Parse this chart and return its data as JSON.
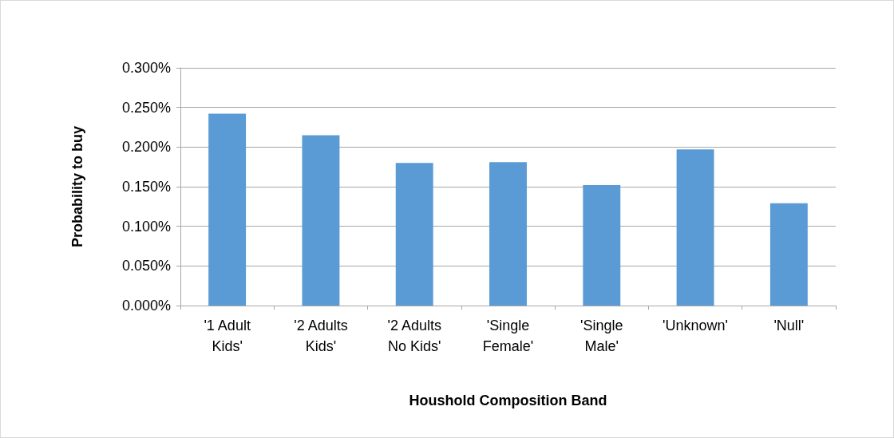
{
  "chart_data": {
    "type": "bar",
    "xlabel": "Houshold Composition Band",
    "ylabel": "Probability to buy",
    "categories": [
      "'1 Adult\nKids'",
      "'2 Adults\nKids'",
      "'2 Adults\nNo Kids'",
      "'Single\nFemale'",
      "'Single\nMale'",
      "'Unknown'",
      "'Null'"
    ],
    "values": [
      0.242,
      0.215,
      0.18,
      0.181,
      0.152,
      0.197,
      0.129
    ],
    "color": "#5b9bd5",
    "ylim": [
      0,
      0.3
    ],
    "yticks": [
      {
        "value": 0,
        "label": "0.000%"
      },
      {
        "value": 0.05,
        "label": "0.050%"
      },
      {
        "value": 0.1,
        "label": "0.100%"
      },
      {
        "value": 0.15,
        "label": "0.150%"
      },
      {
        "value": 0.2,
        "label": "0.200%"
      },
      {
        "value": 0.25,
        "label": "0.250%"
      },
      {
        "value": 0.3,
        "label": "0.300%"
      }
    ],
    "grid": "y"
  }
}
